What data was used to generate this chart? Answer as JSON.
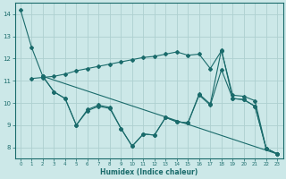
{
  "xlabel": "Humidex (Indice chaleur)",
  "bg_color": "#cce8e8",
  "grid_color": "#aed0d0",
  "line_color": "#1a6b6b",
  "xlim": [
    -0.5,
    23.5
  ],
  "ylim": [
    7.5,
    14.5
  ],
  "xticks": [
    0,
    1,
    2,
    3,
    4,
    5,
    6,
    7,
    8,
    9,
    10,
    11,
    12,
    13,
    14,
    15,
    16,
    17,
    18,
    19,
    20,
    21,
    22,
    23
  ],
  "yticks": [
    8,
    9,
    10,
    11,
    12,
    13,
    14
  ],
  "line1_x": [
    0,
    1,
    2,
    3,
    4,
    5,
    6,
    7,
    8,
    9,
    10,
    11,
    12,
    13,
    14,
    15,
    16,
    17,
    18,
    19,
    20,
    21,
    22,
    23
  ],
  "line1_y": [
    14.2,
    12.5,
    11.2,
    10.5,
    10.2,
    9.0,
    9.7,
    9.9,
    9.8,
    8.85,
    8.05,
    8.6,
    8.55,
    9.35,
    9.15,
    9.1,
    10.4,
    9.95,
    12.4,
    10.2,
    10.15,
    9.85,
    7.95,
    7.7
  ],
  "line2_x": [
    1,
    2,
    3,
    4,
    5,
    6,
    7,
    8,
    9,
    10,
    11,
    12,
    13,
    14,
    15,
    16,
    17,
    18,
    19,
    20,
    21,
    22,
    23
  ],
  "line2_y": [
    11.1,
    11.15,
    11.2,
    11.3,
    11.45,
    11.55,
    11.65,
    11.75,
    11.85,
    11.95,
    12.05,
    12.1,
    12.2,
    12.3,
    12.15,
    12.2,
    11.55,
    12.35,
    10.35,
    10.3,
    10.1,
    7.95,
    7.7
  ],
  "line3_x": [
    2,
    3,
    4,
    5,
    6,
    7,
    8,
    9,
    10,
    11,
    12,
    13,
    14,
    15,
    16,
    17,
    18,
    19,
    20,
    21,
    22,
    23
  ],
  "line3_y": [
    11.2,
    10.5,
    10.2,
    9.0,
    9.65,
    9.85,
    9.75,
    8.85,
    8.05,
    8.6,
    8.55,
    9.35,
    9.15,
    9.1,
    10.35,
    9.9,
    11.5,
    10.2,
    10.15,
    9.85,
    7.95,
    7.7
  ],
  "line4_x": [
    2,
    23
  ],
  "line4_y": [
    11.2,
    7.7
  ]
}
